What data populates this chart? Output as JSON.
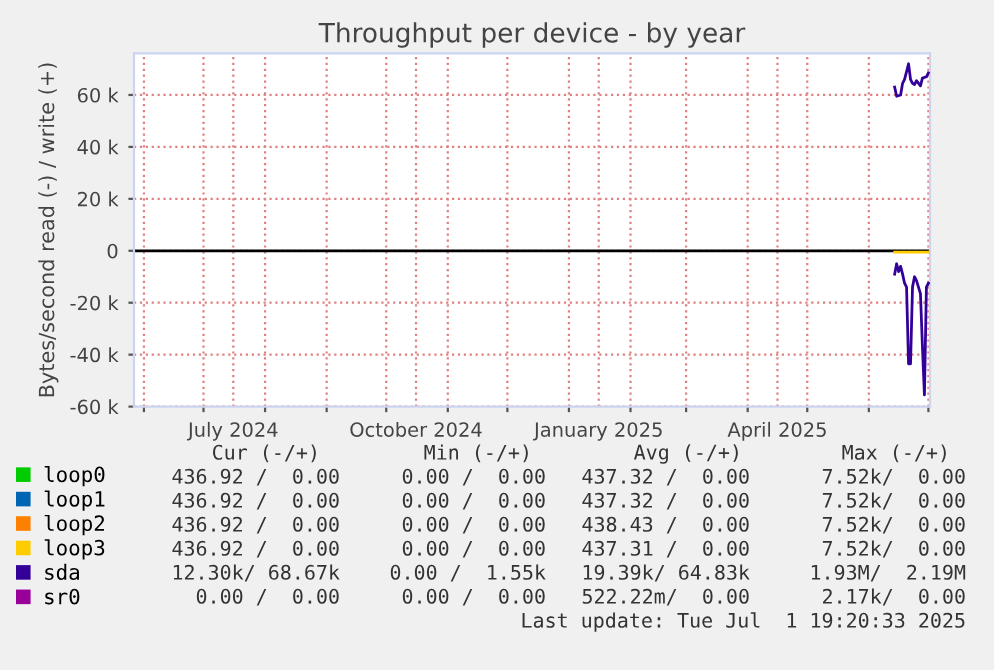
{
  "chart_data": {
    "type": "line",
    "title": "Throughput per device - by year",
    "ylabel": "Bytes/second read (-) / write (+)",
    "x": [
      "2025-06-14",
      "2025-06-15",
      "2025-06-17",
      "2025-06-18",
      "2025-06-19",
      "2025-06-21",
      "2025-06-22",
      "2025-06-23",
      "2025-06-24",
      "2025-06-25",
      "2025-06-27",
      "2025-06-28",
      "2025-06-30",
      "2025-07-01"
    ],
    "series": [
      {
        "name": "loop0",
        "color": "#00cc00",
        "values": [
          null,
          null,
          null,
          null,
          null,
          null,
          null,
          null,
          null,
          null,
          null,
          null,
          null,
          null
        ]
      },
      {
        "name": "loop1",
        "color": "#0066b3",
        "values": [
          null,
          null,
          null,
          null,
          null,
          null,
          null,
          null,
          null,
          null,
          null,
          null,
          null,
          null
        ]
      },
      {
        "name": "loop2",
        "color": "#ff8000",
        "values": [
          null,
          null,
          null,
          null,
          null,
          null,
          null,
          null,
          null,
          null,
          null,
          null,
          null,
          null
        ]
      },
      {
        "name": "loop3",
        "color": "#ffcc00",
        "values": [
          -500,
          -500,
          -500,
          -500,
          -500,
          -500,
          -500,
          -500,
          -500,
          -500,
          -500,
          -500,
          -500,
          -500
        ]
      },
      {
        "name": "sda",
        "color": "#330099",
        "x": [
          "2025-06-14",
          "2025-06-15",
          "2025-06-17",
          "2025-06-18",
          "2025-06-19",
          "2025-06-21",
          "2025-06-22",
          "2025-06-23",
          "2025-06-24",
          "2025-06-25",
          "2025-06-27",
          "2025-06-28",
          "2025-06-30",
          "2025-07-01"
        ],
        "values": [
          63000,
          59500,
          60000,
          64500,
          66000,
          72000,
          66000,
          64500,
          64000,
          65500,
          63500,
          66500,
          67000,
          68500
        ]
      },
      {
        "color": "#330099",
        "x": [
          "2025-06-14",
          "2025-06-15",
          "2025-06-16",
          "2025-06-17",
          "2025-06-18",
          "2025-06-19",
          "2025-06-20",
          "2025-06-21",
          "2025-06-22",
          "2025-06-23",
          "2025-06-24",
          "2025-06-25",
          "2025-06-27",
          "2025-06-28",
          "2025-06-29",
          "2025-06-30",
          "2025-07-01"
        ],
        "values": [
          -9000,
          -5000,
          -8000,
          -6000,
          -9000,
          -12500,
          -14000,
          -43500,
          -43500,
          -14000,
          -10000,
          -11500,
          -16500,
          -37000,
          -55500,
          -14000,
          -12500
        ]
      },
      {
        "name": "sr0",
        "color": "#990099",
        "values": [
          null,
          null,
          null,
          null,
          null,
          null,
          null,
          null,
          null,
          null,
          null,
          null,
          null,
          null
        ]
      }
    ],
    "xlim": [
      "2024-05-27",
      "2025-07-01T19:20"
    ],
    "xticks": [
      {
        "value": "2024-06-01",
        "label": null
      },
      {
        "value": "2024-07-01",
        "label": null
      },
      {
        "value": "2024-07-16",
        "label": "July 2024"
      },
      {
        "value": "2024-08-01",
        "label": null
      },
      {
        "value": "2024-09-01",
        "label": null
      },
      {
        "value": "2024-10-01",
        "label": null
      },
      {
        "value": "2024-10-16",
        "label": "October 2024"
      },
      {
        "value": "2024-11-01",
        "label": null
      },
      {
        "value": "2024-12-01",
        "label": null
      },
      {
        "value": "2025-01-01",
        "label": null
      },
      {
        "value": "2025-01-16",
        "label": "January 2025"
      },
      {
        "value": "2025-02-01",
        "label": null
      },
      {
        "value": "2025-03-01",
        "label": null
      },
      {
        "value": "2025-04-01",
        "label": null
      },
      {
        "value": "2025-04-16",
        "label": "April 2025"
      },
      {
        "value": "2025-05-01",
        "label": null
      },
      {
        "value": "2025-06-01",
        "label": null
      },
      {
        "value": "2025-07-01",
        "label": null
      }
    ],
    "ylim": [
      -60000,
      76000
    ],
    "yticks": [
      {
        "value": -60000,
        "label": "-60 k"
      },
      {
        "value": -40000,
        "label": "-40 k"
      },
      {
        "value": -20000,
        "label": "-20 k"
      },
      {
        "value": 0,
        "label": "0"
      },
      {
        "value": 20000,
        "label": "20 k"
      },
      {
        "value": 40000,
        "label": "40 k"
      },
      {
        "value": 60000,
        "label": "60 k"
      }
    ],
    "ref_lines": [
      {
        "axis": "y",
        "value": 0,
        "color": "#000000"
      }
    ],
    "grid": true,
    "legend": "bottom left",
    "annotations": [
      "Cur (-/+)",
      "Min (-/+)",
      "Avg (-/+)",
      "Max (-/+)",
      "436.92 /  0.00",
      "0.00 /  0.00",
      "437.32 /  0.00",
      "7.52k/  0.00",
      "436.92 /  0.00",
      "0.00 /  0.00",
      "437.32 /  0.00",
      "7.52k/  0.00",
      "436.92 /  0.00",
      "0.00 /  0.00",
      "438.43 /  0.00",
      "7.52k/  0.00",
      "436.92 /  0.00",
      "0.00 /  0.00",
      "437.31 /  0.00",
      "7.52k/  0.00",
      "12.30k/ 68.67k",
      "0.00 /  1.55k",
      "19.39k/ 64.83k",
      "1.93M/  2.19M",
      "0.00 /  0.00",
      "0.00 /  0.00",
      "522.22m/  0.00",
      "2.17k/  0.00",
      "Last update: Tue Jul  1 19:20:33 2025"
    ]
  }
}
